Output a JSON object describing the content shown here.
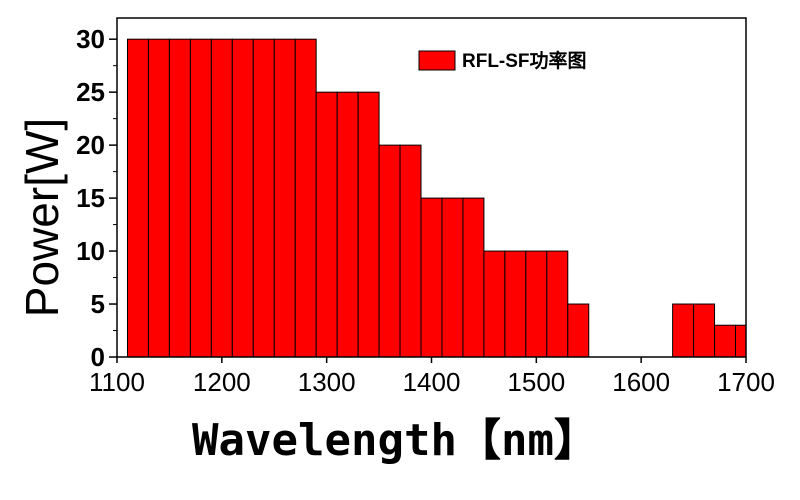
{
  "chart_data": {
    "type": "bar",
    "bin_width": 20,
    "bins": [
      {
        "x0": 1110,
        "x1": 1130,
        "value": 30
      },
      {
        "x0": 1130,
        "x1": 1150,
        "value": 30
      },
      {
        "x0": 1150,
        "x1": 1170,
        "value": 30
      },
      {
        "x0": 1170,
        "x1": 1190,
        "value": 30
      },
      {
        "x0": 1190,
        "x1": 1210,
        "value": 30
      },
      {
        "x0": 1210,
        "x1": 1230,
        "value": 30
      },
      {
        "x0": 1230,
        "x1": 1250,
        "value": 30
      },
      {
        "x0": 1250,
        "x1": 1270,
        "value": 30
      },
      {
        "x0": 1270,
        "x1": 1290,
        "value": 30
      },
      {
        "x0": 1290,
        "x1": 1310,
        "value": 25
      },
      {
        "x0": 1310,
        "x1": 1330,
        "value": 25
      },
      {
        "x0": 1330,
        "x1": 1350,
        "value": 25
      },
      {
        "x0": 1350,
        "x1": 1370,
        "value": 20
      },
      {
        "x0": 1370,
        "x1": 1390,
        "value": 20
      },
      {
        "x0": 1390,
        "x1": 1410,
        "value": 15
      },
      {
        "x0": 1410,
        "x1": 1430,
        "value": 15
      },
      {
        "x0": 1430,
        "x1": 1450,
        "value": 15
      },
      {
        "x0": 1450,
        "x1": 1470,
        "value": 10
      },
      {
        "x0": 1470,
        "x1": 1490,
        "value": 10
      },
      {
        "x0": 1490,
        "x1": 1510,
        "value": 10
      },
      {
        "x0": 1510,
        "x1": 1530,
        "value": 10
      },
      {
        "x0": 1530,
        "x1": 1550,
        "value": 5
      },
      {
        "x0": 1630,
        "x1": 1650,
        "value": 5
      },
      {
        "x0": 1650,
        "x1": 1670,
        "value": 5
      },
      {
        "x0": 1670,
        "x1": 1690,
        "value": 3
      },
      {
        "x0": 1690,
        "x1": 1700,
        "value": 3
      }
    ],
    "xlabel": "Wavelength【nm】",
    "ylabel": "Power[W]",
    "legend": "RFL-SF功率图",
    "legend_position": "top-right",
    "xlim": [
      1100,
      1700
    ],
    "ylim": [
      0,
      32
    ],
    "x_ticks": [
      1100,
      1200,
      1300,
      1400,
      1500,
      1600,
      1700
    ],
    "y_ticks": [
      0,
      5,
      10,
      15,
      20,
      25,
      30
    ],
    "grid": false,
    "bar_color": "#ff0000",
    "edge_color": "#000000"
  }
}
